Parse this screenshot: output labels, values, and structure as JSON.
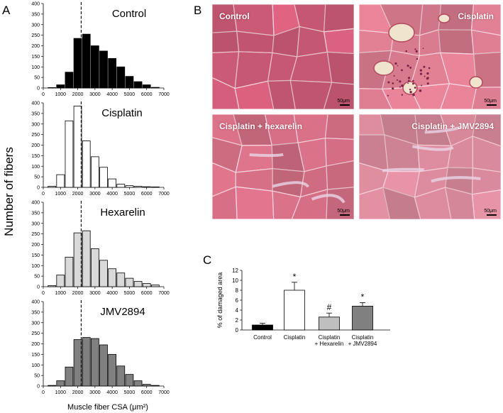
{
  "panel_a": {
    "letter": "A",
    "ylabel": "Number of fibers",
    "xlabel": "Muscle fiber CSA (μm²)"
  },
  "panel_b": {
    "letter": "B",
    "images": [
      {
        "label": "Control",
        "scale": "50μm",
        "tint": "#cd5b77",
        "damage": "none"
      },
      {
        "label": "Cisplatin",
        "scale": "50μm",
        "tint": "#d77a8d",
        "damage": "severe"
      },
      {
        "label": "Cisplatin + hexarelin",
        "scale": "50μm",
        "tint": "#cf6c82",
        "damage": "mild"
      },
      {
        "label": "Cisplatin + JMV2894",
        "scale": "50μm",
        "tint": "#d98a9c",
        "damage": "moderate"
      }
    ]
  },
  "panel_c": {
    "letter": "C"
  },
  "chart_data": [
    {
      "type": "bar",
      "title": "Control",
      "color": "#000000",
      "bin_centers": [
        500,
        1000,
        1500,
        2000,
        2500,
        3000,
        3500,
        4000,
        4500,
        5000,
        5500,
        6000,
        6500
      ],
      "values": [
        2,
        15,
        75,
        235,
        255,
        200,
        175,
        140,
        100,
        55,
        30,
        15,
        3
      ],
      "xlim": [
        0,
        7000
      ],
      "ylim": [
        0,
        400
      ],
      "xticks": [
        0,
        1000,
        2000,
        3000,
        4000,
        5000,
        6000,
        7000
      ],
      "yticks": [
        0,
        50,
        100,
        150,
        200,
        250,
        300,
        350,
        400
      ],
      "dashed_line_x": 2200
    },
    {
      "type": "bar",
      "title": "Cisplatin",
      "color": "#ffffff",
      "bin_centers": [
        500,
        1000,
        1500,
        2000,
        2500,
        3000,
        3500,
        4000,
        4500,
        5000,
        5500,
        6000,
        6500
      ],
      "values": [
        5,
        60,
        315,
        385,
        220,
        145,
        95,
        40,
        15,
        8,
        5,
        3,
        2
      ],
      "xlim": [
        0,
        7000
      ],
      "ylim": [
        0,
        400
      ],
      "xticks": [
        0,
        1000,
        2000,
        3000,
        4000,
        5000,
        6000,
        7000
      ],
      "yticks": [
        0,
        50,
        100,
        150,
        200,
        250,
        300,
        350,
        400
      ],
      "dashed_line_x": 2200
    },
    {
      "type": "bar",
      "title": "Hexarelin",
      "color": "#d9d9d9",
      "bin_centers": [
        500,
        1000,
        1500,
        2000,
        2500,
        3000,
        3500,
        4000,
        4500,
        5000,
        5500,
        6000,
        6500
      ],
      "values": [
        5,
        55,
        140,
        255,
        265,
        180,
        125,
        85,
        65,
        40,
        25,
        15,
        8
      ],
      "xlim": [
        0,
        7000
      ],
      "ylim": [
        0,
        400
      ],
      "xticks": [
        0,
        1000,
        2000,
        3000,
        4000,
        5000,
        6000,
        7000
      ],
      "yticks": [
        0,
        50,
        100,
        150,
        200,
        250,
        300,
        350,
        400
      ],
      "dashed_line_x": 2200
    },
    {
      "type": "bar",
      "title": "JMV2894",
      "color": "#808080",
      "bin_centers": [
        500,
        1000,
        1500,
        2000,
        2500,
        3000,
        3500,
        4000,
        4500,
        5000,
        5500,
        6000,
        6500
      ],
      "values": [
        3,
        25,
        90,
        220,
        230,
        225,
        195,
        150,
        95,
        55,
        25,
        8,
        3
      ],
      "xlim": [
        0,
        7000
      ],
      "ylim": [
        0,
        400
      ],
      "xticks": [
        0,
        1000,
        2000,
        3000,
        4000,
        5000,
        6000,
        7000
      ],
      "yticks": [
        0,
        50,
        100,
        150,
        200,
        250,
        300,
        350,
        400
      ],
      "dashed_line_x": 2200
    },
    {
      "type": "bar",
      "title": "",
      "categories": [
        "Control",
        "Cisplatin",
        "Cisplatin\n+ Hexarelin",
        "Cisplatin\n+ JMV2894"
      ],
      "values": [
        1.0,
        8.0,
        2.6,
        4.8
      ],
      "errors": [
        0.35,
        1.6,
        0.8,
        0.7
      ],
      "significance": [
        "",
        "*",
        "#",
        "*"
      ],
      "colors": [
        "#000000",
        "#ffffff",
        "#bfbfbf",
        "#808080"
      ],
      "ylabel": "% of damaged area",
      "ylim": [
        0,
        12
      ],
      "yticks": [
        0,
        2,
        4,
        6,
        8,
        10,
        12
      ]
    }
  ]
}
